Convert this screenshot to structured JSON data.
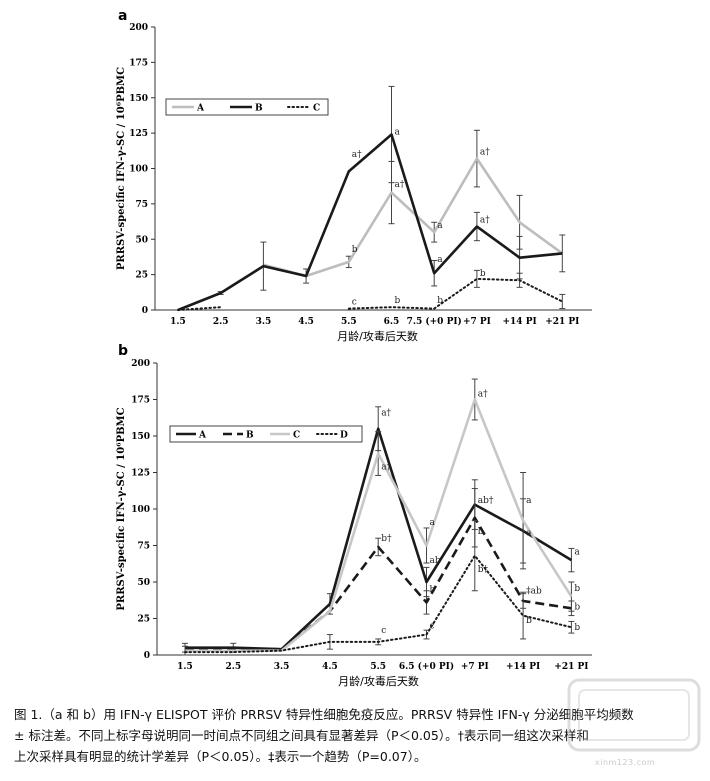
{
  "chart_data": [
    {
      "panel": "a",
      "type": "line",
      "ylabel": "PRRSV-specific IFN-γ-SC / 10⁶PBMC",
      "xlabel": "月龄/攻毒后天数",
      "categories": [
        "1.5",
        "2.5",
        "3.5",
        "4.5",
        "5.5",
        "6.5",
        "7.5 (+0 PI)",
        "+7 PI",
        "+14 PI",
        "+21 PI"
      ],
      "ylim": [
        0,
        200
      ],
      "yticks": [
        0,
        25,
        50,
        75,
        100,
        125,
        150,
        175,
        200
      ],
      "legend_position": "top-left",
      "series": [
        {
          "name": "A",
          "style": "solid",
          "color": "#bdbdbd",
          "values": [
            null,
            null,
            32,
            24,
            34,
            83,
            55,
            107,
            62,
            40
          ],
          "errors": [
            null,
            null,
            null,
            null,
            4,
            22,
            7,
            20,
            19,
            null
          ]
        },
        {
          "name": "B",
          "style": "solid",
          "color": "#1a1a1a",
          "values": [
            0,
            12,
            31,
            24,
            98,
            124,
            26,
            59,
            37,
            40
          ],
          "errors": [
            null,
            1,
            17,
            5,
            null,
            34,
            9,
            10,
            15,
            13
          ]
        },
        {
          "name": "C",
          "style": "dotted",
          "color": "#1a1a1a",
          "values": [
            0,
            2,
            null,
            null,
            1,
            2,
            1,
            22,
            21,
            6
          ],
          "errors": [
            null,
            null,
            null,
            null,
            null,
            null,
            null,
            6,
            5,
            5
          ]
        }
      ],
      "annotations": [
        {
          "category": "5.5",
          "y": 108,
          "text": "a†"
        },
        {
          "category": "5.5",
          "y": 41,
          "text": "b"
        },
        {
          "category": "5.5",
          "y": 4,
          "text": "c"
        },
        {
          "category": "6.5",
          "y": 124,
          "text": "a"
        },
        {
          "category": "6.5",
          "y": 87,
          "text": "a†"
        },
        {
          "category": "6.5",
          "y": 5,
          "text": "b"
        },
        {
          "category": "7.5 (+0 PI)",
          "y": 58,
          "text": "a"
        },
        {
          "category": "7.5 (+0 PI)",
          "y": 34,
          "text": "a"
        },
        {
          "category": "7.5 (+0 PI)",
          "y": 5,
          "text": "b"
        },
        {
          "category": "+7 PI",
          "y": 110,
          "text": "a†"
        },
        {
          "category": "+7 PI",
          "y": 62,
          "text": "a†"
        },
        {
          "category": "+7 PI",
          "y": 24,
          "text": "b"
        }
      ]
    },
    {
      "panel": "b",
      "type": "line",
      "ylabel": "PRRSV-specific IFN-γ-SC / 10⁶PBMC",
      "xlabel": "月龄/攻毒后天数",
      "categories": [
        "1.5",
        "2.5",
        "3.5",
        "4.5",
        "5.5",
        "6.5 (+0 PI)",
        "+7 PI",
        "+14 PI",
        "+21 PI"
      ],
      "ylim": [
        0,
        200
      ],
      "yticks": [
        0,
        25,
        50,
        75,
        100,
        125,
        150,
        175,
        200
      ],
      "legend_position": "top-left",
      "series": [
        {
          "name": "A",
          "style": "solid",
          "color": "#1a1a1a",
          "values": [
            5,
            5,
            4,
            35,
            155,
            50,
            103,
            85,
            65
          ],
          "errors": [
            3,
            3,
            null,
            7,
            15,
            10,
            17,
            22,
            8
          ]
        },
        {
          "name": "B",
          "style": "dashed",
          "color": "#1a1a1a",
          "values": [
            4,
            4,
            4,
            30,
            74,
            36,
            94,
            37,
            32
          ],
          "errors": [
            null,
            null,
            null,
            null,
            6,
            8,
            20,
            5,
            5
          ]
        },
        {
          "name": "C",
          "style": "solid",
          "color": "#c7c7c7",
          "values": [
            3,
            3,
            3,
            30,
            138,
            75,
            175,
            92,
            40
          ],
          "errors": [
            null,
            null,
            null,
            null,
            15,
            12,
            14,
            33,
            10
          ]
        },
        {
          "name": "D",
          "style": "dotted",
          "color": "#1a1a1a",
          "values": [
            2,
            2,
            3,
            9,
            9,
            14,
            68,
            27,
            19
          ],
          "errors": [
            4,
            null,
            null,
            5,
            2,
            3,
            24,
            16,
            4
          ]
        }
      ],
      "annotations": [
        {
          "category": "5.5",
          "y": 164,
          "text": "a†"
        },
        {
          "category": "5.5",
          "y": 127,
          "text": "a†"
        },
        {
          "category": "5.5",
          "y": 78,
          "text": "b†"
        },
        {
          "category": "5.5",
          "y": 15,
          "text": "c"
        },
        {
          "category": "6.5 (+0 PI)",
          "y": 89,
          "text": "a"
        },
        {
          "category": "6.5 (+0 PI)",
          "y": 63,
          "text": "ab"
        },
        {
          "category": "6.5 (+0 PI)",
          "y": 43,
          "text": "b"
        },
        {
          "category": "6.5 (+0 PI)",
          "y": 18,
          "text": "c"
        },
        {
          "category": "+7 PI",
          "y": 177,
          "text": "a†"
        },
        {
          "category": "+7 PI",
          "y": 104,
          "text": "ab†"
        },
        {
          "category": "+7 PI",
          "y": 83,
          "text": "b"
        },
        {
          "category": "+7 PI",
          "y": 57,
          "text": "b†"
        },
        {
          "category": "+14 PI",
          "y": 104,
          "text": "a"
        },
        {
          "category": "+14 PI",
          "y": 82,
          "text": "a"
        },
        {
          "category": "+14 PI",
          "y": 42,
          "text": "‡ab"
        },
        {
          "category": "+14 PI",
          "y": 22,
          "text": "b"
        },
        {
          "category": "+21 PI",
          "y": 69,
          "text": "a"
        },
        {
          "category": "+21 PI",
          "y": 44,
          "text": "b"
        },
        {
          "category": "+21 PI",
          "y": 31,
          "text": "b"
        },
        {
          "category": "+21 PI",
          "y": 17,
          "text": "b"
        }
      ]
    }
  ],
  "caption": {
    "line1": "图 1.（a 和 b）用 IFN-γ ELISPOT 评价 PRRSV 特异性细胞免疫反应。PRRSV 特异性 IFN-γ 分泌细胞平均频数",
    "line2": "± 标注差。不同上标字母说明同一时间点不同组之间具有显著差异（P＜0.05）。†表示同一组这次采样和",
    "line3": "上次采样具有明显的统计学差异（P＜0.05）。‡表示一个趋势（P=0.07）。"
  },
  "watermark": {
    "text": "xinm123.com"
  }
}
